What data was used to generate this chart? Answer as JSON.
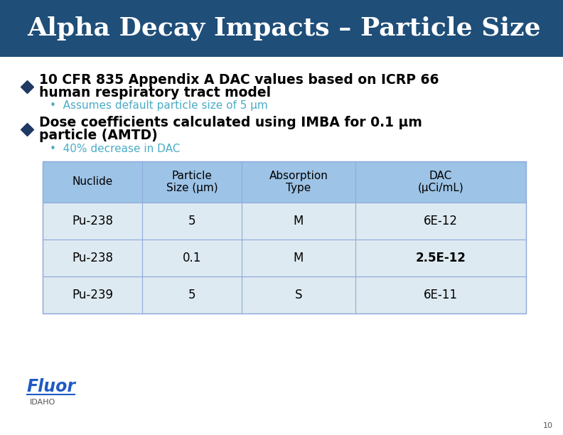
{
  "title": "Alpha Decay Impacts – Particle Size",
  "title_bg_color": "#1F4E79",
  "title_text_color": "#FFFFFF",
  "bg_color": "#FFFFFF",
  "bullet1_main": "10 CFR 835 Appendix A DAC values based on ICRP 66\nhuman respiratory tract model",
  "bullet1_sub": "•  Assumes default particle size of 5 μm",
  "bullet2_main": "Dose coefficients calculated using IMBA for 0.1 μm\nparticle (AMTD)",
  "bullet2_sub": "•  40% decrease in DAC",
  "bullet_color": "#000000",
  "sub_bullet_color": "#4BACC6",
  "diamond_color": "#1F3864",
  "table_header_bg": "#9DC3E6",
  "table_row_bg": "#DEEAF1",
  "table_header": [
    "Nuclide",
    "Particle\nSize (μm)",
    "Absorption\nType",
    "DAC\n(μCi/mL)"
  ],
  "table_data": [
    [
      "Pu-238",
      "5",
      "M",
      "6E-12"
    ],
    [
      "Pu-238",
      "0.1",
      "M",
      "2.5E-12"
    ],
    [
      "Pu-239",
      "5",
      "S",
      "6E-11"
    ]
  ],
  "table_bold_col3": [
    false,
    true,
    false
  ],
  "page_number": "10"
}
